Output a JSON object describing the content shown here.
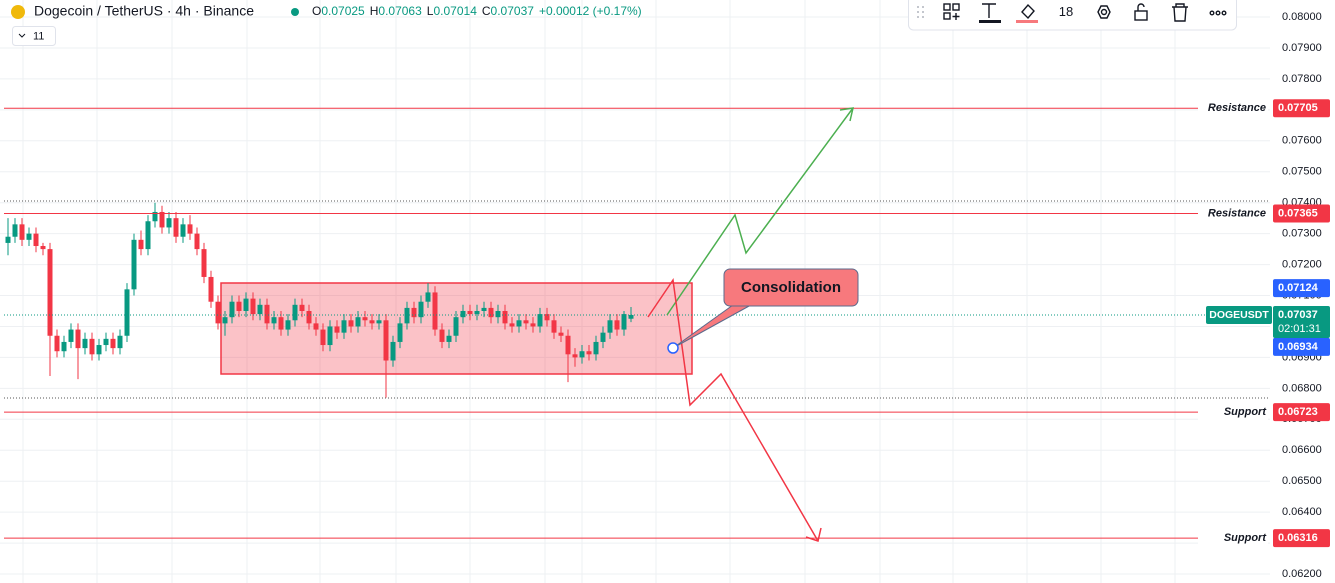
{
  "chart_data": {
    "type": "candlestick",
    "title": "Dogecoin / TetherUS · 4h · Binance",
    "ohlc_labels": {
      "open": "O",
      "high": "H",
      "low": "L",
      "close": "C"
    },
    "header_values": {
      "open": "0.07025",
      "high": "0.07063",
      "low": "0.07014",
      "close": "0.07037",
      "change": "+0.00012 (+0.17%)"
    },
    "indicator_count": "11",
    "toolbar_value": "18",
    "ylim": [
      0.06171,
      0.08055
    ],
    "yticks": [
      {
        "value": 0.062,
        "label": "0.06200"
      },
      {
        "value": 0.063,
        "label": "0.06300"
      },
      {
        "value": 0.064,
        "label": "0.06400"
      },
      {
        "value": 0.065,
        "label": "0.06500"
      },
      {
        "value": 0.066,
        "label": "0.06600"
      },
      {
        "value": 0.067,
        "label": "0.06700"
      },
      {
        "value": 0.068,
        "label": "0.06800"
      },
      {
        "value": 0.069,
        "label": "0.06900"
      },
      {
        "value": 0.07,
        "label": "0.07000"
      },
      {
        "value": 0.071,
        "label": "0.07100"
      },
      {
        "value": 0.072,
        "label": "0.07200"
      },
      {
        "value": 0.073,
        "label": "0.07300"
      },
      {
        "value": 0.074,
        "label": "0.07400"
      },
      {
        "value": 0.075,
        "label": "0.07500"
      },
      {
        "value": 0.076,
        "label": "0.07600"
      },
      {
        "value": 0.077,
        "label": "0.07700"
      },
      {
        "value": 0.078,
        "label": "0.07800"
      },
      {
        "value": 0.079,
        "label": "0.07900"
      },
      {
        "value": 0.08,
        "label": "0.08000"
      }
    ],
    "grid": true,
    "up_color": "#089981",
    "down_color": "#f23645",
    "levels": [
      {
        "label": "Resistance",
        "value": 0.07705
      },
      {
        "label": "Resistance",
        "value": 0.07365
      },
      {
        "label": "Support",
        "value": 0.06723
      },
      {
        "label": "Support",
        "value": 0.06316
      }
    ],
    "level_color": "#f23645",
    "marker_prices": [
      0.07124,
      0.06934
    ],
    "marker_color": "#2962ff",
    "symbol": "DOGEUSDT",
    "last_price": 0.07037,
    "countdown": "02:01:31",
    "annotation": "Consolidation",
    "ohlc": [
      [
        0.0727,
        0.0735,
        0.0723,
        0.0729
      ],
      [
        0.0729,
        0.0735,
        0.0727,
        0.0733
      ],
      [
        0.0733,
        0.0735,
        0.0726,
        0.0728
      ],
      [
        0.0728,
        0.0732,
        0.0726,
        0.073
      ],
      [
        0.073,
        0.0732,
        0.0724,
        0.0726
      ],
      [
        0.0726,
        0.0727,
        0.0723,
        0.0725
      ],
      [
        0.0725,
        0.0727,
        0.0684,
        0.0697
      ],
      [
        0.0697,
        0.0699,
        0.069,
        0.0692
      ],
      [
        0.0692,
        0.0697,
        0.069,
        0.0695
      ],
      [
        0.0695,
        0.0701,
        0.0693,
        0.0699
      ],
      [
        0.0699,
        0.0701,
        0.0683,
        0.0693
      ],
      [
        0.0693,
        0.0698,
        0.0691,
        0.0696
      ],
      [
        0.0696,
        0.0698,
        0.0689,
        0.0691
      ],
      [
        0.0691,
        0.0696,
        0.0689,
        0.0694
      ],
      [
        0.0694,
        0.0698,
        0.0692,
        0.0696
      ],
      [
        0.0696,
        0.0698,
        0.0691,
        0.0693
      ],
      [
        0.0693,
        0.0699,
        0.0691,
        0.0697
      ],
      [
        0.0697,
        0.0714,
        0.0695,
        0.0712
      ],
      [
        0.0712,
        0.073,
        0.071,
        0.0728
      ],
      [
        0.0728,
        0.0731,
        0.0723,
        0.0725
      ],
      [
        0.0725,
        0.0736,
        0.0723,
        0.0734
      ],
      [
        0.0734,
        0.074,
        0.0732,
        0.0737
      ],
      [
        0.0737,
        0.0739,
        0.073,
        0.0732
      ],
      [
        0.0732,
        0.0737,
        0.073,
        0.0735
      ],
      [
        0.0735,
        0.0737,
        0.0727,
        0.0729
      ],
      [
        0.0729,
        0.0735,
        0.0727,
        0.0733
      ],
      [
        0.0733,
        0.0736,
        0.0728,
        0.073
      ],
      [
        0.073,
        0.0732,
        0.0723,
        0.0725
      ],
      [
        0.0725,
        0.0727,
        0.0714,
        0.0716
      ],
      [
        0.0716,
        0.0718,
        0.0706,
        0.0708
      ],
      [
        0.0708,
        0.071,
        0.0699,
        0.0701
      ],
      [
        0.0701,
        0.0705,
        0.0697,
        0.0703
      ],
      [
        0.0703,
        0.071,
        0.0701,
        0.0708
      ],
      [
        0.0708,
        0.071,
        0.0703,
        0.0705
      ],
      [
        0.0705,
        0.0711,
        0.0703,
        0.0709
      ],
      [
        0.0709,
        0.0711,
        0.0702,
        0.0704
      ],
      [
        0.0704,
        0.0709,
        0.0702,
        0.0707
      ],
      [
        0.0707,
        0.0709,
        0.0699,
        0.0701
      ],
      [
        0.0701,
        0.0705,
        0.0699,
        0.0703
      ],
      [
        0.0703,
        0.0705,
        0.0697,
        0.0699
      ],
      [
        0.0699,
        0.0704,
        0.0697,
        0.0702
      ],
      [
        0.0702,
        0.0709,
        0.07,
        0.0707
      ],
      [
        0.0707,
        0.0709,
        0.0703,
        0.0705
      ],
      [
        0.0705,
        0.0707,
        0.0699,
        0.0701
      ],
      [
        0.0701,
        0.0703,
        0.0697,
        0.0699
      ],
      [
        0.0699,
        0.0701,
        0.0692,
        0.0694
      ],
      [
        0.0694,
        0.0702,
        0.0692,
        0.07
      ],
      [
        0.07,
        0.0702,
        0.0696,
        0.0698
      ],
      [
        0.0698,
        0.0704,
        0.0696,
        0.0702
      ],
      [
        0.0702,
        0.0704,
        0.0698,
        0.07
      ],
      [
        0.07,
        0.0705,
        0.0698,
        0.0703
      ],
      [
        0.0703,
        0.0705,
        0.07,
        0.0702
      ],
      [
        0.0702,
        0.0704,
        0.0699,
        0.0701
      ],
      [
        0.0701,
        0.0704,
        0.0699,
        0.0702
      ],
      [
        0.0702,
        0.0704,
        0.0677,
        0.0689
      ],
      [
        0.0689,
        0.0697,
        0.0687,
        0.0695
      ],
      [
        0.0695,
        0.0703,
        0.0693,
        0.0701
      ],
      [
        0.0701,
        0.0708,
        0.0699,
        0.0706
      ],
      [
        0.0706,
        0.0708,
        0.0701,
        0.0703
      ],
      [
        0.0703,
        0.071,
        0.0701,
        0.0708
      ],
      [
        0.0708,
        0.0714,
        0.0706,
        0.0711
      ],
      [
        0.0711,
        0.0713,
        0.0697,
        0.0699
      ],
      [
        0.0699,
        0.0701,
        0.0693,
        0.0695
      ],
      [
        0.0695,
        0.0699,
        0.0693,
        0.0697
      ],
      [
        0.0697,
        0.0705,
        0.0695,
        0.0703
      ],
      [
        0.0703,
        0.0707,
        0.0701,
        0.0705
      ],
      [
        0.0705,
        0.0707,
        0.0702,
        0.0704
      ],
      [
        0.0704,
        0.0707,
        0.0702,
        0.0705
      ],
      [
        0.0705,
        0.0708,
        0.0703,
        0.0706
      ],
      [
        0.0706,
        0.0708,
        0.0701,
        0.0703
      ],
      [
        0.0703,
        0.0707,
        0.0701,
        0.0705
      ],
      [
        0.0705,
        0.0707,
        0.0699,
        0.0701
      ],
      [
        0.0701,
        0.0703,
        0.0698,
        0.07
      ],
      [
        0.07,
        0.0704,
        0.0698,
        0.0702
      ],
      [
        0.0702,
        0.0704,
        0.0699,
        0.0701
      ],
      [
        0.0701,
        0.0703,
        0.0698,
        0.07
      ],
      [
        0.07,
        0.0706,
        0.0698,
        0.0704
      ],
      [
        0.0704,
        0.0706,
        0.07,
        0.0702
      ],
      [
        0.0702,
        0.0704,
        0.0696,
        0.0698
      ],
      [
        0.0698,
        0.07,
        0.0695,
        0.0697
      ],
      [
        0.0697,
        0.0699,
        0.0682,
        0.0691
      ],
      [
        0.0691,
        0.0693,
        0.0687,
        0.069
      ],
      [
        0.069,
        0.0694,
        0.0688,
        0.0692
      ],
      [
        0.0692,
        0.0694,
        0.0689,
        0.0691
      ],
      [
        0.0691,
        0.0697,
        0.0689,
        0.0695
      ],
      [
        0.0695,
        0.07,
        0.0693,
        0.0698
      ],
      [
        0.0698,
        0.0704,
        0.0696,
        0.0702
      ],
      [
        0.0702,
        0.0704,
        0.0697,
        0.0699
      ],
      [
        0.0699,
        0.0705,
        0.0697,
        0.0704
      ],
      [
        0.07025,
        0.07063,
        0.07014,
        0.07037
      ]
    ]
  }
}
